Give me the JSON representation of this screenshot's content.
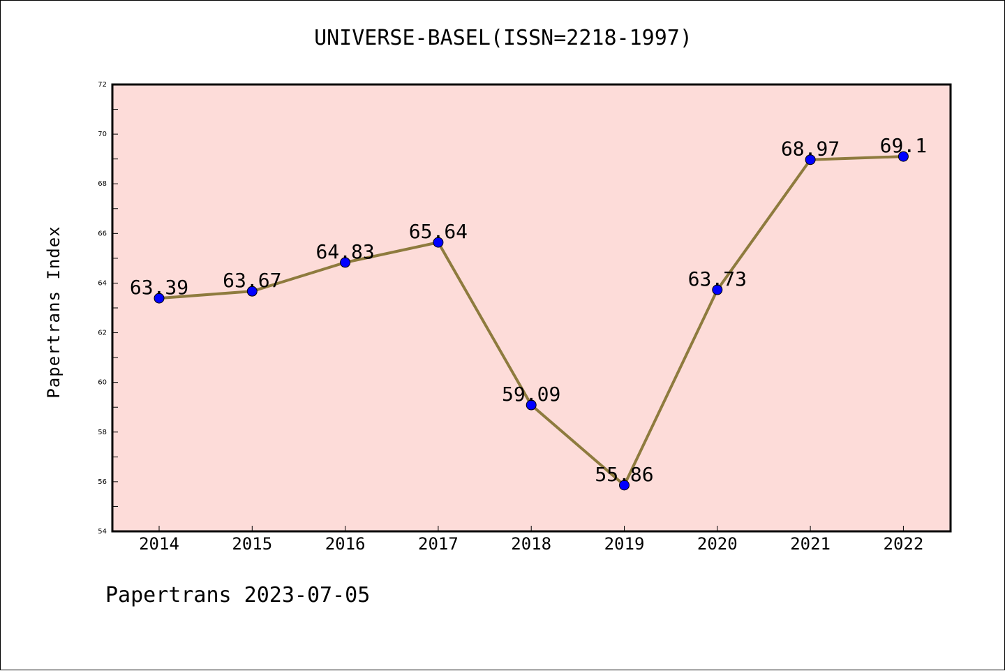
{
  "title": "UNIVERSE-BASEL(ISSN=2218-1997)",
  "footer": "Papertrans 2023-07-05",
  "colors": {
    "plot_background": "#fddcd9",
    "line": "#8e7b3e",
    "marker": "#0000ff",
    "frame": "#000000"
  },
  "chart_data": {
    "type": "line",
    "title": "UNIVERSE-BASEL(ISSN=2218-1997)",
    "xlabel": "",
    "ylabel": "Papertrans Index",
    "categories": [
      "2014",
      "2015",
      "2016",
      "2017",
      "2018",
      "2019",
      "2020",
      "2021",
      "2022"
    ],
    "series": [
      {
        "values": [
          63.39,
          63.67,
          64.83,
          65.64,
          59.09,
          55.86,
          63.73,
          68.97,
          69.1
        ],
        "labels": [
          "63.39",
          "63.67",
          "64.83",
          "65.64",
          "59.09",
          "55.86",
          "63.73",
          "68.97",
          "69.1"
        ]
      }
    ],
    "ylim": [
      54,
      72
    ],
    "yticks": [
      54,
      56,
      58,
      60,
      62,
      64,
      66,
      68,
      70,
      72
    ],
    "grid": false,
    "legend": "none"
  }
}
